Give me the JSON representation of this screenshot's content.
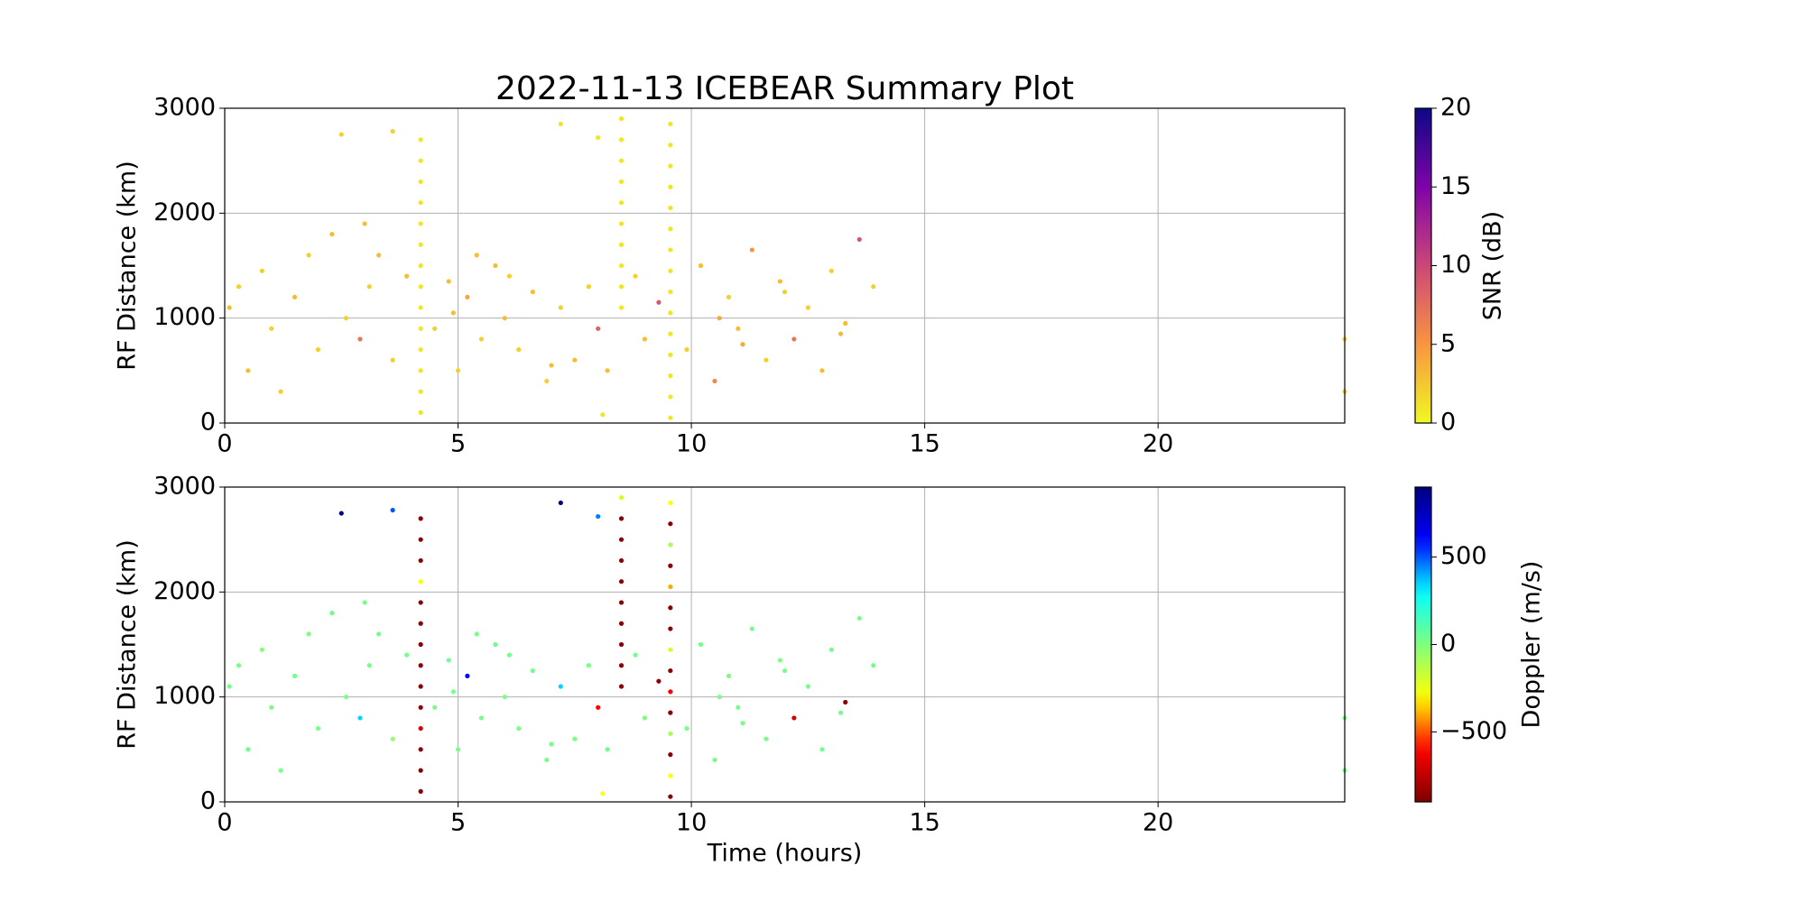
{
  "chart_data": [
    {
      "type": "scatter",
      "title": "2022-11-13 ICEBEAR Summary Plot",
      "ylabel": "RF Distance (km)",
      "xlim": [
        0,
        24
      ],
      "ylim": [
        0,
        3000
      ],
      "xticks": [
        0,
        5,
        10,
        15,
        20
      ],
      "yticks": [
        0,
        1000,
        2000,
        3000
      ],
      "grid": true,
      "colorbar": {
        "label": "SNR (dB)",
        "lim": [
          0,
          20
        ],
        "ticks": [
          0,
          5,
          10,
          15,
          20
        ],
        "colormap": "plasma_r"
      },
      "x": [
        0.1,
        0.3,
        0.5,
        0.8,
        1.0,
        1.2,
        1.5,
        1.8,
        2.0,
        2.3,
        2.6,
        2.9,
        3.1,
        3.3,
        3.6,
        3.9,
        4.5,
        4.8,
        5.0,
        5.2,
        5.5,
        5.8,
        6.0,
        6.3,
        6.6,
        6.9,
        7.2,
        7.5,
        7.8,
        8.0,
        8.2,
        8.8,
        9.0,
        9.3,
        9.9,
        10.2,
        10.5,
        10.8,
        11.0,
        11.3,
        11.6,
        11.9,
        12.2,
        12.5,
        12.8,
        13.0,
        13.3,
        13.6,
        13.9,
        2.5,
        3.6,
        7.2,
        8.0,
        24,
        24,
        8.1,
        4.9,
        6.1,
        7.0,
        10.6,
        12.0,
        13.2,
        5.4,
        11.1,
        3.0,
        4.2,
        4.2,
        4.2,
        4.2,
        4.2,
        4.2,
        4.2,
        4.2,
        4.2,
        4.2,
        4.2,
        4.2,
        4.2,
        4.2,
        8.5,
        8.5,
        8.5,
        8.5,
        8.5,
        8.5,
        8.5,
        8.5,
        8.5,
        8.5,
        9.55,
        9.55,
        9.55,
        9.55,
        9.55,
        9.55,
        9.55,
        9.55,
        9.55,
        9.55,
        9.55,
        9.55,
        9.55,
        9.55,
        9.55
      ],
      "y": [
        1100,
        1300,
        500,
        1450,
        900,
        300,
        1200,
        1600,
        700,
        1800,
        1000,
        800,
        1300,
        1600,
        600,
        1400,
        900,
        1350,
        500,
        1200,
        800,
        1500,
        1000,
        700,
        1250,
        400,
        1100,
        600,
        1300,
        900,
        500,
        1400,
        800,
        1150,
        700,
        1500,
        400,
        1200,
        900,
        1650,
        600,
        1350,
        800,
        1100,
        500,
        1450,
        950,
        1750,
        1300,
        2750,
        2780,
        2850,
        2720,
        800,
        300,
        80,
        1050,
        1400,
        550,
        1000,
        1250,
        850,
        1600,
        750,
        1900,
        100,
        300,
        500,
        700,
        900,
        1100,
        1300,
        1500,
        1700,
        1900,
        2100,
        2300,
        2500,
        2700,
        1100,
        1300,
        1500,
        1700,
        1900,
        2100,
        2300,
        2500,
        2700,
        2900,
        50,
        250,
        450,
        650,
        850,
        1050,
        1250,
        1450,
        1650,
        1850,
        2050,
        2250,
        2450,
        2650,
        2850
      ],
      "c": [
        3,
        2,
        3,
        2,
        2,
        2,
        3,
        2,
        2,
        3,
        2,
        7,
        2,
        3,
        2,
        3,
        2,
        3,
        2,
        4,
        2,
        3,
        3,
        2,
        3,
        2,
        2,
        3,
        2,
        8,
        3,
        2,
        3,
        9,
        2,
        3,
        6,
        2,
        3,
        5,
        2,
        3,
        7,
        2,
        3,
        2,
        3,
        9,
        2,
        2,
        2,
        1,
        1,
        2,
        2,
        1,
        3,
        2,
        3,
        4,
        2,
        3,
        3,
        4,
        3,
        1,
        1,
        1,
        1,
        1,
        1,
        1,
        1,
        1,
        1,
        1,
        1,
        1,
        1,
        1,
        1,
        1,
        1,
        1,
        1,
        1,
        1,
        1,
        1,
        1,
        1,
        1,
        1,
        1,
        1,
        1,
        1,
        1,
        1,
        1,
        1,
        1,
        1,
        1
      ]
    },
    {
      "type": "scatter",
      "ylabel": "RF Distance (km)",
      "xlabel": "Time (hours)",
      "xlim": [
        0,
        24
      ],
      "ylim": [
        0,
        3000
      ],
      "xticks": [
        0,
        5,
        10,
        15,
        20
      ],
      "yticks": [
        0,
        1000,
        2000,
        3000
      ],
      "grid": true,
      "colorbar": {
        "label": "Doppler (m/s)",
        "lim": [
          -900,
          900
        ],
        "ticks": [
          {
            "value": -500,
            "label": "−500"
          },
          0,
          500
        ],
        "colormap": "jet_r"
      },
      "x": [
        0.1,
        0.3,
        0.5,
        0.8,
        1.0,
        1.2,
        1.5,
        1.8,
        2.0,
        2.3,
        2.6,
        2.9,
        3.1,
        3.3,
        3.6,
        3.9,
        4.5,
        4.8,
        5.0,
        5.2,
        5.5,
        5.8,
        6.0,
        6.3,
        6.6,
        6.9,
        7.2,
        7.5,
        7.8,
        8.0,
        8.2,
        8.8,
        9.0,
        9.3,
        9.9,
        10.2,
        10.5,
        10.8,
        11.0,
        11.3,
        11.6,
        11.9,
        12.2,
        12.5,
        12.8,
        13.0,
        13.3,
        13.6,
        13.9,
        2.5,
        3.6,
        7.2,
        8.0,
        24,
        24,
        8.1,
        4.9,
        6.1,
        7.0,
        10.6,
        12.0,
        13.2,
        5.4,
        11.1,
        3.0,
        4.2,
        4.2,
        4.2,
        4.2,
        4.2,
        4.2,
        4.2,
        4.2,
        4.2,
        4.2,
        4.2,
        4.2,
        4.2,
        4.2,
        8.5,
        8.5,
        8.5,
        8.5,
        8.5,
        8.5,
        8.5,
        8.5,
        8.5,
        8.5,
        9.55,
        9.55,
        9.55,
        9.55,
        9.55,
        9.55,
        9.55,
        9.55,
        9.55,
        9.55,
        9.55,
        9.55,
        9.55,
        9.55,
        9.55
      ],
      "y": [
        1100,
        1300,
        500,
        1450,
        900,
        300,
        1200,
        1600,
        700,
        1800,
        1000,
        800,
        1300,
        1600,
        600,
        1400,
        900,
        1350,
        500,
        1200,
        800,
        1500,
        1000,
        700,
        1250,
        400,
        1100,
        600,
        1300,
        900,
        500,
        1400,
        800,
        1150,
        700,
        1500,
        400,
        1200,
        900,
        1650,
        600,
        1350,
        800,
        1100,
        500,
        1450,
        950,
        1750,
        1300,
        2750,
        2780,
        2850,
        2720,
        800,
        300,
        80,
        1050,
        1400,
        550,
        1000,
        1250,
        850,
        1600,
        750,
        1900,
        100,
        300,
        500,
        700,
        900,
        1100,
        1300,
        1500,
        1700,
        1900,
        2100,
        2300,
        2500,
        2700,
        1100,
        1300,
        1500,
        1700,
        1900,
        2100,
        2300,
        2500,
        2700,
        2900,
        50,
        250,
        450,
        650,
        850,
        1050,
        1250,
        1450,
        1650,
        1850,
        2050,
        2250,
        2450,
        2650,
        2850
      ],
      "c": [
        30,
        20,
        40,
        -20,
        10,
        20,
        30,
        0,
        20,
        40,
        10,
        350,
        20,
        30,
        -50,
        20,
        10,
        30,
        20,
        600,
        20,
        30,
        10,
        20,
        30,
        20,
        350,
        10,
        20,
        -600,
        30,
        20,
        10,
        -880,
        20,
        30,
        20,
        10,
        20,
        30,
        20,
        10,
        -700,
        20,
        30,
        20,
        -880,
        20,
        30,
        900,
        500,
        900,
        450,
        20,
        20,
        -300,
        20,
        30,
        20,
        10,
        20,
        30,
        20,
        10,
        20,
        -880,
        -880,
        -880,
        -700,
        -880,
        -880,
        -880,
        -880,
        -880,
        -880,
        -300,
        -880,
        -880,
        -880,
        -880,
        -880,
        -880,
        -880,
        -880,
        -880,
        -880,
        -880,
        -880,
        -200,
        -880,
        -300,
        -880,
        -100,
        -880,
        -600,
        -880,
        -200,
        -880,
        -880,
        -400,
        -880,
        -100,
        -880,
        -300
      ]
    }
  ]
}
